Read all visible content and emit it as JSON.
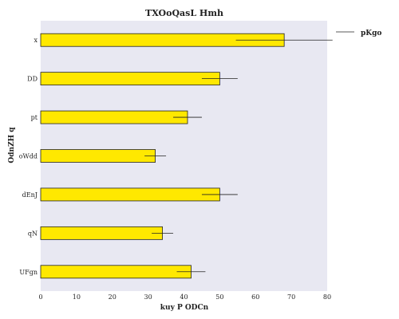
{
  "chart_data": {
    "type": "bar",
    "orientation": "horizontal",
    "title": "TXOoQasL Hmh",
    "xlabel": "kuy P  ODCn",
    "ylabel": "OdnZH  q",
    "xlim": [
      0,
      80
    ],
    "xticks": [
      0,
      10,
      20,
      30,
      40,
      50,
      60,
      70,
      80
    ],
    "categories": [
      "x",
      "DD",
      "pt",
      "oWdd",
      "dEnJ",
      "qN",
      "UFgn"
    ],
    "series": [
      {
        "name": "pKgo",
        "values": [
          68,
          50,
          41,
          32,
          50,
          34,
          42
        ],
        "errors": [
          13.5,
          5,
          4,
          3,
          5,
          3,
          4
        ],
        "color": "#ffe800",
        "edge_color": "#222222"
      }
    ],
    "grid": false,
    "background": "#e8e8f2",
    "legend": {
      "position": "right-top",
      "entries": [
        "pKgo"
      ]
    }
  }
}
